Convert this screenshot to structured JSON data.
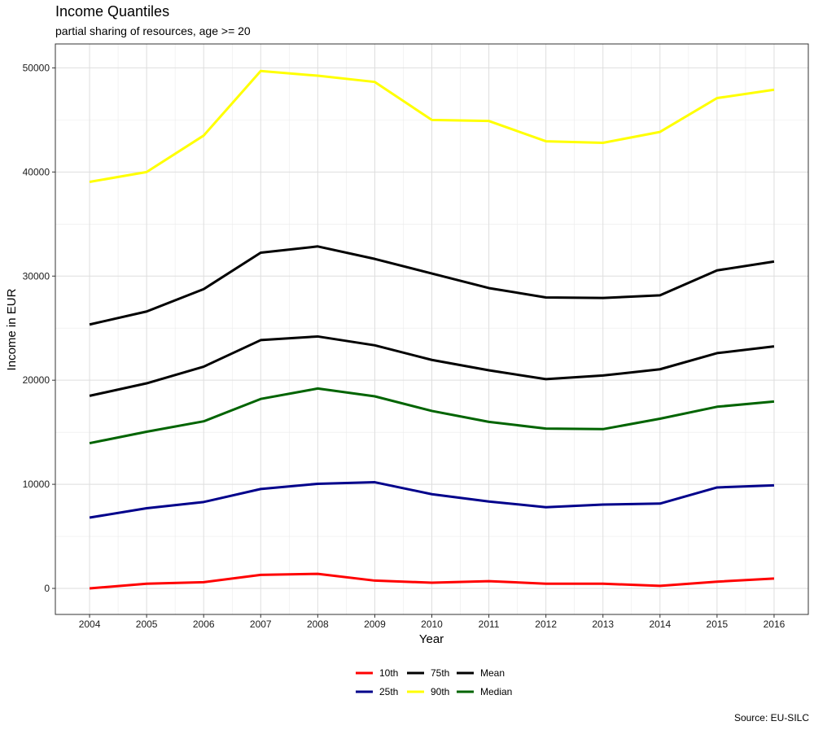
{
  "chart_data": {
    "type": "line",
    "title": "Income Quantiles",
    "subtitle": "partial sharing of resources, age >= 20",
    "xlabel": "Year",
    "ylabel": "Income in EUR",
    "caption": "Source: EU-SILC",
    "x": [
      2004,
      2005,
      2006,
      2007,
      2008,
      2009,
      2010,
      2011,
      2012,
      2013,
      2014,
      2015,
      2016
    ],
    "x_ticks": [
      "2004",
      "2005",
      "2006",
      "2007",
      "2008",
      "2009",
      "2010",
      "2011",
      "2012",
      "2013",
      "2014",
      "2015",
      "2016"
    ],
    "xlim": [
      2003.4,
      2016.6
    ],
    "ylim": [
      -2500,
      52300
    ],
    "y_ticks": [
      0,
      10000,
      20000,
      30000,
      40000,
      50000
    ],
    "y_tick_labels": [
      "0",
      "10000",
      "20000",
      "30000",
      "40000",
      "50000"
    ],
    "grid": true,
    "legend_position": "bottom",
    "series": [
      {
        "name": "10th",
        "color": "#ff0000",
        "values": [
          0,
          450,
          600,
          1300,
          1400,
          750,
          550,
          700,
          450,
          450,
          250,
          650,
          950
        ]
      },
      {
        "name": "25th",
        "color": "#00008b",
        "values": [
          6800,
          7700,
          8300,
          9550,
          10050,
          10200,
          9050,
          8350,
          7800,
          8050,
          8150,
          9700,
          9900
        ]
      },
      {
        "name": "75th",
        "color": "#000000",
        "values": [
          25350,
          26600,
          28750,
          32250,
          32850,
          31650,
          30250,
          28850,
          27950,
          27900,
          28150,
          30550,
          31400
        ]
      },
      {
        "name": "90th",
        "color": "#ffff00",
        "values": [
          39050,
          40000,
          43500,
          49700,
          49250,
          48650,
          45000,
          44900,
          42950,
          42800,
          43850,
          47100,
          47900
        ]
      },
      {
        "name": "Mean",
        "color": "#000000",
        "values": [
          18500,
          19700,
          21300,
          23850,
          24200,
          23350,
          21950,
          20950,
          20100,
          20450,
          21050,
          22600,
          23250
        ]
      },
      {
        "name": "Median",
        "color": "#006400",
        "values": [
          13950,
          15050,
          16050,
          18200,
          19200,
          18450,
          17050,
          16000,
          15350,
          15300,
          16300,
          17450,
          17950
        ]
      }
    ]
  }
}
